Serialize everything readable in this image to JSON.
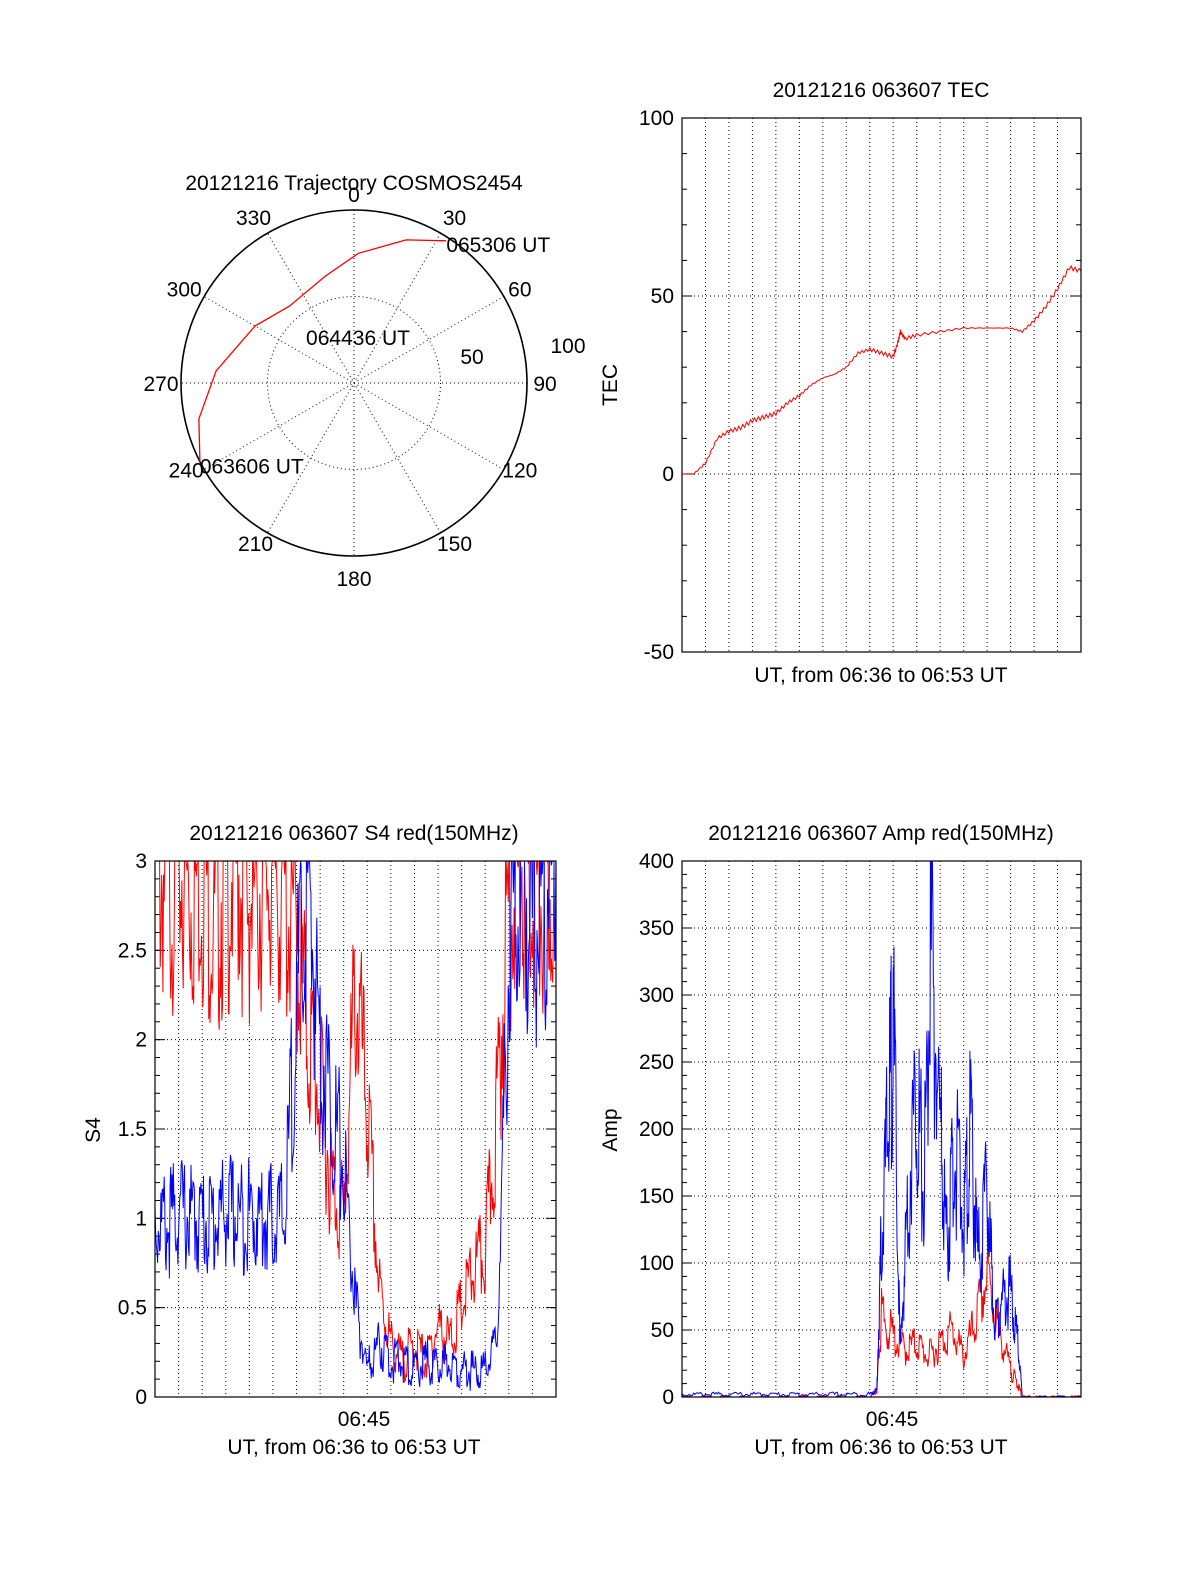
{
  "chart_data": [
    {
      "type": "polar",
      "title": "20121216 Trajectory COSMOS2454",
      "azimuth_labels": [
        "0",
        "30",
        "60",
        "90",
        "120",
        "150",
        "180",
        "210",
        "240",
        "270",
        "300",
        "330"
      ],
      "ring_labels": [
        "50",
        "100"
      ],
      "rlim": [
        0,
        100
      ],
      "trajectory": {
        "color": "#ff0000",
        "points": [
          {
            "az": 243,
            "r": 100,
            "label": "063606 UT"
          },
          {
            "az": 257,
            "r": 92
          },
          {
            "az": 275,
            "r": 80
          },
          {
            "az": 300,
            "r": 66
          },
          {
            "az": 320,
            "r": 58,
            "label": "064436 UT"
          },
          {
            "az": 345,
            "r": 64
          },
          {
            "az": 2,
            "r": 75
          },
          {
            "az": 20,
            "r": 88
          },
          {
            "az": 33,
            "r": 98,
            "label": "065306 UT"
          }
        ]
      }
    },
    {
      "type": "line",
      "title": "20121216 063607 TEC",
      "xlabel": "UT, from 06:36 to 06:53 UT",
      "ylabel": "TEC",
      "xlim": [
        0,
        17
      ],
      "ylim": [
        -50,
        100
      ],
      "yticks": [
        "100",
        "50",
        "0",
        "-50"
      ],
      "grid": true,
      "series": [
        {
          "color": "#ff0000",
          "x": [
            0,
            0.5,
            1.0,
            1.5,
            2.0,
            2.5,
            3.0,
            3.5,
            4.0,
            4.5,
            5.0,
            5.5,
            6.0,
            6.5,
            7.0,
            7.5,
            8.0,
            8.5,
            9.0,
            9.2,
            9.3,
            9.5,
            10.0,
            11.0,
            12.0,
            13.0,
            14.0,
            14.5,
            15.0,
            15.5,
            16.0,
            16.5,
            17.0
          ],
          "y": [
            0,
            0,
            3,
            10,
            12,
            13,
            15,
            16,
            17,
            20,
            22,
            25,
            27,
            28,
            30,
            34,
            35,
            34,
            33,
            37,
            40,
            38,
            39,
            40,
            41,
            41,
            41,
            40,
            43,
            47,
            52,
            58,
            57
          ]
        }
      ]
    },
    {
      "type": "line",
      "title": "20121216 063607 S4 red(150MHz)",
      "xlabel": "UT, from 06:36 to 06:53 UT",
      "ylabel": "S4",
      "xtick": "06:45",
      "xlim": [
        0,
        17
      ],
      "ylim": [
        0,
        3
      ],
      "yticks": [
        "3",
        "2.5",
        "2",
        "1.5",
        "1",
        "0.5",
        "0"
      ],
      "grid": true,
      "series": [
        {
          "color": "#ff0000",
          "x": [
            0,
            0.5,
            1.0,
            1.5,
            2.0,
            2.5,
            3.0,
            3.5,
            4.0,
            4.5,
            5.0,
            5.5,
            6.0,
            6.5,
            7.0,
            7.5,
            8.0,
            8.5,
            9.0,
            9.5,
            10.0,
            10.5,
            11.0,
            11.5,
            12.0,
            12.5,
            13.0,
            13.5,
            14.0,
            14.5,
            15.0,
            15.5,
            16.0,
            16.5,
            17.0
          ],
          "y": [
            3.0,
            2.9,
            3.0,
            2.8,
            3.0,
            2.7,
            2.9,
            3.0,
            2.8,
            2.9,
            3.0,
            2.8,
            2.6,
            2.0,
            1.7,
            1.2,
            1.0,
            2.3,
            1.6,
            0.6,
            0.3,
            0.2,
            0.3,
            0.2,
            0.4,
            0.3,
            0.5,
            0.7,
            0.8,
            1.6,
            2.8,
            3.0,
            2.9,
            2.7,
            3.0
          ]
        },
        {
          "color": "#0000ff",
          "x": [
            0,
            0.5,
            1.0,
            1.5,
            2.0,
            2.5,
            3.0,
            3.5,
            4.0,
            4.5,
            5.0,
            5.5,
            6.0,
            6.5,
            7.0,
            7.5,
            8.0,
            8.5,
            9.0,
            9.5,
            10.0,
            10.5,
            11.0,
            11.5,
            12.0,
            12.5,
            13.0,
            13.5,
            14.0,
            14.5,
            15.0,
            15.5,
            16.0,
            16.5,
            17.0
          ],
          "y": [
            1.0,
            0.95,
            1.05,
            1.0,
            1.0,
            0.98,
            1.05,
            1.0,
            1.02,
            1.0,
            1.0,
            1.0,
            2.2,
            2.8,
            2.0,
            1.6,
            1.3,
            0.5,
            0.15,
            0.3,
            0.2,
            0.2,
            0.15,
            0.2,
            0.15,
            0.2,
            0.15,
            0.15,
            0.15,
            0.3,
            2.5,
            3.0,
            2.6,
            2.8,
            3.0
          ]
        }
      ]
    },
    {
      "type": "line",
      "title": "20121216 063607 Amp red(150MHz)",
      "xlabel": "UT, from 06:36 to 06:53 UT",
      "ylabel": "Amp",
      "xtick": "06:45",
      "xlim": [
        0,
        17
      ],
      "ylim": [
        0,
        400
      ],
      "yticks": [
        "400",
        "350",
        "300",
        "250",
        "200",
        "150",
        "100",
        "50",
        "0"
      ],
      "grid": true,
      "series": [
        {
          "color": "#ff0000",
          "x": [
            0,
            1,
            2,
            3,
            4,
            5,
            6,
            7,
            8,
            8.3,
            8.5,
            9.0,
            9.5,
            10.0,
            10.5,
            11.0,
            11.5,
            12.0,
            12.5,
            13.0,
            13.5,
            14.0,
            14.3,
            14.5,
            15,
            16,
            17
          ],
          "y": [
            0,
            0,
            0,
            0,
            0,
            0,
            0,
            0,
            0,
            5,
            60,
            45,
            35,
            40,
            30,
            40,
            50,
            30,
            55,
            90,
            50,
            20,
            10,
            0,
            0,
            0,
            0
          ]
        },
        {
          "color": "#0000ff",
          "x": [
            0,
            1,
            2,
            3,
            4,
            5,
            6,
            7,
            8,
            8.3,
            8.5,
            8.8,
            9.0,
            9.3,
            9.6,
            10.0,
            10.3,
            10.6,
            11.0,
            11.3,
            11.6,
            12.0,
            12.3,
            12.6,
            13.0,
            13.3,
            13.6,
            14.0,
            14.3,
            14.5,
            15,
            16,
            17
          ],
          "y": [
            2,
            2,
            2,
            2,
            2,
            2,
            2,
            2,
            2,
            5,
            120,
            210,
            280,
            30,
            140,
            230,
            150,
            330,
            200,
            110,
            190,
            130,
            200,
            100,
            150,
            60,
            70,
            80,
            40,
            0,
            0,
            0,
            0
          ]
        }
      ]
    }
  ]
}
